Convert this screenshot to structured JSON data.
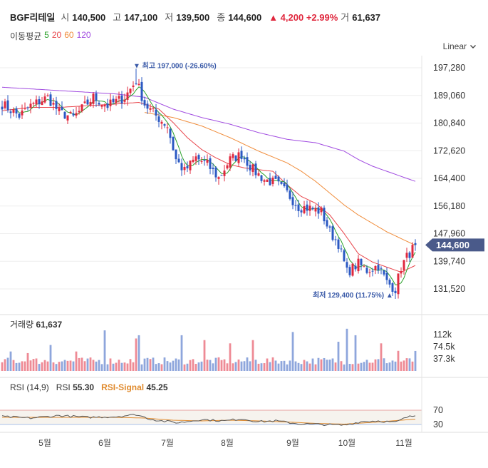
{
  "header": {
    "stock_name": "BGF리테일",
    "open_label": "시",
    "open": "140,500",
    "high_label": "고",
    "high": "147,100",
    "low_label": "저",
    "low": "139,500",
    "close_label": "종",
    "close": "144,600",
    "change": "▲ 4,200 +2.99%",
    "volume_label": "거",
    "volume": "61,637"
  },
  "ma_legend": {
    "label": "이동평균",
    "p5": "5",
    "p20": "20",
    "p60": "60",
    "p120": "120",
    "colors": {
      "p5": "#2aa12a",
      "p20": "#e8444a",
      "p60": "#f08c3a",
      "p120": "#a04ae0"
    }
  },
  "scale_selector": {
    "label": "Linear",
    "icon": "chevron-down-icon"
  },
  "colors": {
    "up": "#e0283e",
    "down": "#2b59c3",
    "price_tag": "#4a5a8a",
    "grid": "#eeeeee"
  },
  "chart_data": [
    {
      "type": "candlestick",
      "title": "",
      "y_ticks": [
        "197,280",
        "189,060",
        "180,840",
        "172,620",
        "164,400",
        "156,180",
        "147,960",
        "139,740",
        "131,520"
      ],
      "y_tick_values": [
        197280,
        189060,
        180840,
        172620,
        164400,
        156180,
        147960,
        139740,
        131520
      ],
      "x_ticks": [
        "5월",
        "6월",
        "7월",
        "8월",
        "9월",
        "10월",
        "11월"
      ],
      "x_tick_index": [
        15,
        36,
        58,
        79,
        102,
        121,
        141
      ],
      "max_label": "▼ 최고 197,000 (-26.60%)",
      "min_label": "최저 129,400 (11.75%) ▲",
      "current_price": "144,600",
      "max_price": 197000,
      "min_price": 129400,
      "close_series_anchors": [
        [
          0,
          186500
        ],
        [
          6,
          183000
        ],
        [
          10,
          186000
        ],
        [
          16,
          188500
        ],
        [
          20,
          184000
        ],
        [
          25,
          182500
        ],
        [
          32,
          188500
        ],
        [
          37,
          186000
        ],
        [
          43,
          188500
        ],
        [
          47,
          193500
        ],
        [
          50,
          186500
        ],
        [
          54,
          183000
        ],
        [
          58,
          180000
        ],
        [
          61,
          170000
        ],
        [
          64,
          166500
        ],
        [
          68,
          170500
        ],
        [
          72,
          168500
        ],
        [
          76,
          164500
        ],
        [
          80,
          170000
        ],
        [
          84,
          171500
        ],
        [
          88,
          167000
        ],
        [
          92,
          164000
        ],
        [
          96,
          163000
        ],
        [
          100,
          160000
        ],
        [
          104,
          156000
        ],
        [
          108,
          155500
        ],
        [
          112,
          154500
        ],
        [
          115,
          148500
        ],
        [
          118,
          145000
        ],
        [
          121,
          136500
        ],
        [
          125,
          139000
        ],
        [
          128,
          137000
        ],
        [
          132,
          138500
        ],
        [
          135,
          133500
        ],
        [
          138,
          131500
        ],
        [
          140,
          138000
        ],
        [
          142,
          141000
        ],
        [
          145,
          144600
        ]
      ],
      "ma20_anchors": [
        [
          0,
          184500
        ],
        [
          10,
          185500
        ],
        [
          20,
          185500
        ],
        [
          30,
          186000
        ],
        [
          40,
          186500
        ],
        [
          48,
          187000
        ],
        [
          55,
          185000
        ],
        [
          60,
          181000
        ],
        [
          65,
          176500
        ],
        [
          70,
          173000
        ],
        [
          75,
          170500
        ],
        [
          80,
          168500
        ],
        [
          85,
          167500
        ],
        [
          90,
          167000
        ],
        [
          95,
          166500
        ],
        [
          100,
          162500
        ],
        [
          105,
          159000
        ],
        [
          110,
          157000
        ],
        [
          115,
          153500
        ],
        [
          120,
          148000
        ],
        [
          125,
          142000
        ],
        [
          130,
          139500
        ],
        [
          135,
          138000
        ],
        [
          140,
          136500
        ],
        [
          145,
          138500
        ]
      ],
      "ma60_anchors": [
        [
          50,
          184000
        ],
        [
          60,
          182500
        ],
        [
          70,
          180000
        ],
        [
          80,
          176500
        ],
        [
          90,
          172500
        ],
        [
          100,
          169000
        ],
        [
          105,
          166500
        ],
        [
          110,
          163500
        ],
        [
          115,
          160000
        ],
        [
          120,
          156500
        ],
        [
          125,
          153500
        ],
        [
          130,
          151000
        ],
        [
          135,
          148500
        ],
        [
          140,
          146500
        ],
        [
          145,
          144500
        ]
      ],
      "ma120_anchors": [
        [
          0,
          191500
        ],
        [
          10,
          191000
        ],
        [
          20,
          190500
        ],
        [
          30,
          190000
        ],
        [
          40,
          189500
        ],
        [
          50,
          188500
        ],
        [
          60,
          185000
        ],
        [
          70,
          182500
        ],
        [
          80,
          180500
        ],
        [
          90,
          178000
        ],
        [
          100,
          176000
        ],
        [
          110,
          175000
        ],
        [
          120,
          172500
        ],
        [
          125,
          170000
        ],
        [
          130,
          168000
        ],
        [
          135,
          166500
        ],
        [
          140,
          165000
        ],
        [
          145,
          163500
        ]
      ]
    },
    {
      "type": "bar",
      "title": "거래량",
      "last_volume": "61,637",
      "y_ticks": [
        "112k",
        "74.5k",
        "37.3k"
      ],
      "y_tick_values": [
        112000,
        74500,
        37300
      ],
      "spikes": [
        [
          3,
          60000
        ],
        [
          9,
          55000
        ],
        [
          17,
          80000
        ],
        [
          26,
          60000
        ],
        [
          36,
          125000
        ],
        [
          47,
          100000
        ],
        [
          48,
          110000
        ],
        [
          63,
          110000
        ],
        [
          71,
          95000
        ],
        [
          80,
          85000
        ],
        [
          88,
          95000
        ],
        [
          102,
          120000
        ],
        [
          118,
          90000
        ],
        [
          121,
          130000
        ],
        [
          124,
          110000
        ],
        [
          133,
          85000
        ],
        [
          139,
          62000
        ],
        [
          145,
          61637
        ]
      ]
    },
    {
      "type": "line",
      "title": "RSI (14,9)",
      "rsi_label": "RSI",
      "rsi_value": "55.30",
      "signal_label": "RSI-Signal",
      "signal_value": "45.25",
      "levels": [
        "70",
        "30"
      ],
      "level_values": [
        70,
        30
      ],
      "rsi_anchors": [
        [
          0,
          52
        ],
        [
          10,
          48
        ],
        [
          20,
          55
        ],
        [
          30,
          50
        ],
        [
          40,
          52
        ],
        [
          47,
          58
        ],
        [
          52,
          45
        ],
        [
          56,
          40
        ],
        [
          62,
          35
        ],
        [
          70,
          44
        ],
        [
          78,
          40
        ],
        [
          84,
          46
        ],
        [
          90,
          38
        ],
        [
          96,
          40
        ],
        [
          104,
          32
        ],
        [
          112,
          30
        ],
        [
          120,
          28
        ],
        [
          126,
          38
        ],
        [
          132,
          40
        ],
        [
          138,
          36
        ],
        [
          142,
          50
        ],
        [
          145,
          55
        ]
      ],
      "signal_anchors": [
        [
          0,
          50
        ],
        [
          20,
          50
        ],
        [
          40,
          50
        ],
        [
          50,
          48
        ],
        [
          60,
          42
        ],
        [
          70,
          40
        ],
        [
          80,
          42
        ],
        [
          90,
          40
        ],
        [
          100,
          37
        ],
        [
          110,
          33
        ],
        [
          120,
          31
        ],
        [
          130,
          36
        ],
        [
          140,
          42
        ],
        [
          145,
          45
        ]
      ]
    }
  ]
}
